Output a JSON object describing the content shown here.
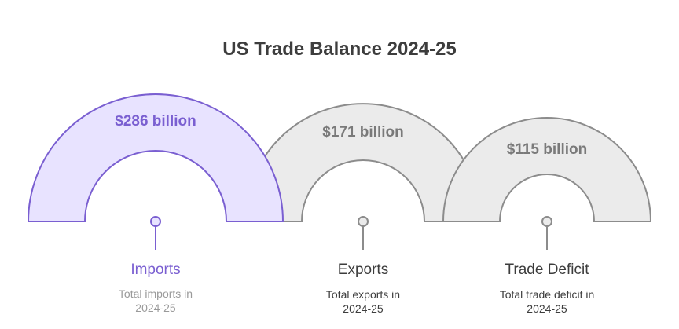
{
  "title": "US Trade Balance 2024-25",
  "colors": {
    "title": "#3d3d3d",
    "imports_fill": "#e8e3ff",
    "imports_stroke": "#7a5fd1",
    "imports_text": "#7a5fd1",
    "neutral_fill": "#ebebeb",
    "neutral_stroke": "#8c8c8c",
    "neutral_value_text": "#7a7a7a",
    "label_text": "#3d3d3d",
    "desc_muted": "#9a9a9a",
    "desc_dark": "#3d3d3d"
  },
  "items": [
    {
      "value": "$286 billion",
      "label": "Imports",
      "desc_line1": "Total imports in",
      "desc_line2": "2024-25"
    },
    {
      "value": "$171 billion",
      "label": "Exports",
      "desc_line1": "Total exports in",
      "desc_line2": "2024-25"
    },
    {
      "value": "$115 billion",
      "label": "Trade Deficit",
      "desc_line1": "Total trade deficit in",
      "desc_line2": "2024-25"
    }
  ]
}
